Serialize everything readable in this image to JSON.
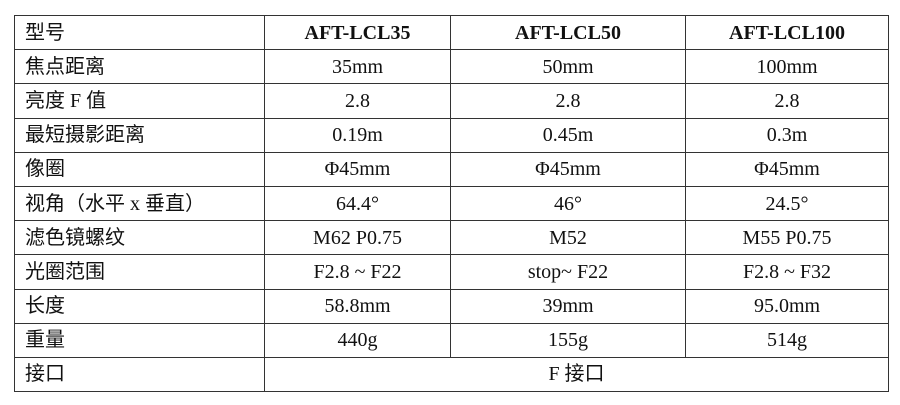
{
  "header": {
    "label": "型号",
    "models": [
      "AFT-LCL35",
      "AFT-LCL50",
      "AFT-LCL100"
    ]
  },
  "rows": [
    {
      "label": "焦点距离",
      "values": [
        "35mm",
        "50mm",
        "100mm"
      ]
    },
    {
      "label": "亮度 F 值",
      "values": [
        "2.8",
        "2.8",
        "2.8"
      ]
    },
    {
      "label": "最短摄影距离",
      "values": [
        "0.19m",
        "0.45m",
        "0.3m"
      ]
    },
    {
      "label": "像圈",
      "values": [
        "Φ45mm",
        "Φ45mm",
        "Φ45mm"
      ]
    },
    {
      "label": "视角（水平 x 垂直）",
      "values": [
        "64.4°",
        "46°",
        "24.5°"
      ]
    },
    {
      "label": "滤色镜螺纹",
      "values": [
        "M62 P0.75",
        "M52",
        "M55 P0.75"
      ]
    },
    {
      "label": "光圈范围",
      "values": [
        "F2.8 ~ F22",
        "stop~ F22",
        "F2.8 ~ F32"
      ]
    },
    {
      "label": "长度",
      "values": [
        "58.8mm",
        "39mm",
        "95.0mm"
      ]
    },
    {
      "label": "重量",
      "values": [
        "440g",
        "155g",
        "514g"
      ]
    }
  ],
  "mount": {
    "label": "接口",
    "value": "F 接口"
  }
}
